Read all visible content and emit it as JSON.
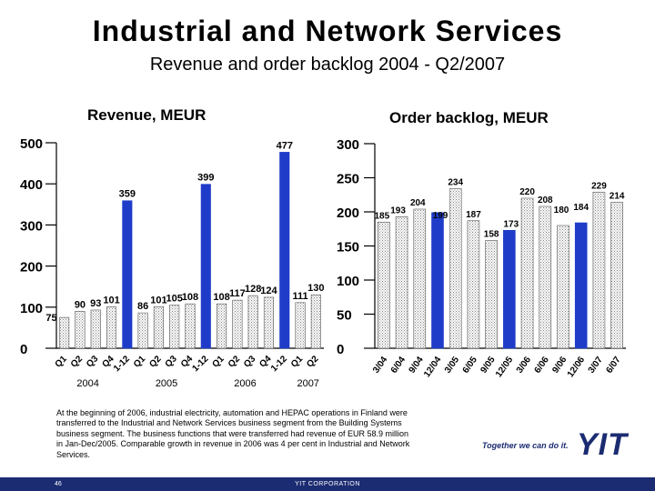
{
  "title": "Industrial and Network Services",
  "subtitle": "Revenue and order backlog 2004 - Q2/2007",
  "note": "At the beginning of 2006, industrial electricity, automation and HEPAC operations in Finland were transferred to the Industrial and Network Services business segment from the Building Systems business segment. The business functions that were transferred had revenue of EUR 58.9 million in Jan-Dec/2005. Comparable growth in revenue in 2006 was 4 per cent in Industrial and Network Services.",
  "footer": {
    "page": "46",
    "company": "YIT CORPORATION",
    "slogan": "Together we can do it.",
    "logo": "YIT"
  },
  "colors": {
    "brand": "#1c2c72",
    "bar_highlight": "#1f3cc9",
    "hatch": "#7f7f7f"
  },
  "chart_data": [
    {
      "type": "bar",
      "title": "Revenue, MEUR",
      "ylim": [
        0,
        500
      ],
      "yticks": [
        "0",
        "100",
        "200",
        "300",
        "400",
        "500"
      ],
      "categories": [
        "Q1",
        "Q2",
        "Q3",
        "Q4",
        "1-12",
        "Q1",
        "Q2",
        "Q3",
        "Q4",
        "1-12",
        "Q1",
        "Q2",
        "Q3",
        "Q4",
        "1-12",
        "Q1",
        "Q2"
      ],
      "values": [
        75,
        90,
        93,
        101,
        359,
        86,
        101,
        105,
        108,
        399,
        108,
        117,
        128,
        124,
        477,
        111,
        130
      ],
      "labels": [
        "75",
        "90",
        "93",
        "101",
        "359",
        "86",
        "101",
        "105",
        "108",
        "399",
        "108",
        "117",
        "128",
        "124",
        "477",
        "111",
        "130"
      ],
      "highlight": [
        false,
        false,
        false,
        false,
        true,
        false,
        false,
        false,
        false,
        true,
        false,
        false,
        false,
        false,
        true,
        false,
        false
      ],
      "year_labels": [
        "2004",
        "2005",
        "2006",
        "2007"
      ]
    },
    {
      "type": "bar",
      "title": "Order backlog, MEUR",
      "ylim": [
        0,
        300
      ],
      "yticks": [
        "0",
        "50",
        "100",
        "150",
        "200",
        "250",
        "300"
      ],
      "categories": [
        "3/04",
        "6/04",
        "9/04",
        "12/04",
        "3/05",
        "6/05",
        "9/05",
        "12/05",
        "3/06",
        "6/06",
        "9/06",
        "12/06",
        "3/07",
        "6/07"
      ],
      "values": [
        185,
        193,
        204,
        199,
        234,
        187,
        158,
        173,
        220,
        208,
        180,
        184,
        229,
        214
      ],
      "labels": [
        "185",
        "193",
        "204",
        "199",
        "234",
        "187",
        "158",
        "173",
        "220",
        "208",
        "180",
        "184",
        "229",
        "214"
      ],
      "highlight": [
        false,
        false,
        false,
        true,
        false,
        false,
        false,
        true,
        false,
        false,
        false,
        true,
        false,
        false
      ]
    }
  ]
}
